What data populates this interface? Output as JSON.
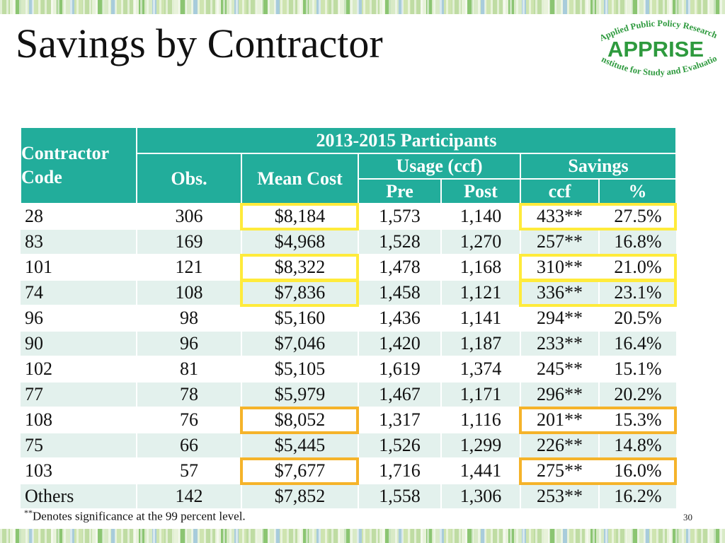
{
  "slide": {
    "title": "Savings by Contractor",
    "slide_number": "30",
    "footnote_marker": "**",
    "footnote": "Denotes significance at the 99 percent level."
  },
  "logo": {
    "top_text": "Applied Public Policy Research",
    "name": "APPRISE",
    "bottom_text": "Institute for Study and Evaluation",
    "color": "#2e9a3e"
  },
  "table": {
    "header": {
      "contractor_code": "Contractor Code",
      "group": "2013-2015 Participants",
      "obs": "Obs.",
      "mean_cost": "Mean Cost",
      "usage": "Usage (ccf)",
      "savings": "Savings",
      "pre": "Pre",
      "post": "Post",
      "ccf": "ccf",
      "pct": "%"
    },
    "rows": [
      [
        "28",
        "306",
        "$8,184",
        "1,573",
        "1,140",
        "433**",
        "27.5%"
      ],
      [
        "83",
        "169",
        "$4,968",
        "1,528",
        "1,270",
        "257**",
        "16.8%"
      ],
      [
        "101",
        "121",
        "$8,322",
        "1,478",
        "1,168",
        "310**",
        "21.0%"
      ],
      [
        "74",
        "108",
        "$7,836",
        "1,458",
        "1,121",
        "336**",
        "23.1%"
      ],
      [
        "96",
        "98",
        "$5,160",
        "1,436",
        "1,141",
        "294**",
        "20.5%"
      ],
      [
        "90",
        "96",
        "$7,046",
        "1,420",
        "1,187",
        "233**",
        "16.4%"
      ],
      [
        "102",
        "81",
        "$5,105",
        "1,619",
        "1,374",
        "245**",
        "15.1%"
      ],
      [
        "77",
        "78",
        "$5,979",
        "1,467",
        "1,171",
        "296**",
        "20.2%"
      ],
      [
        "108",
        "76",
        "$8,052",
        "1,317",
        "1,116",
        "201**",
        "15.3%"
      ],
      [
        "75",
        "66",
        "$5,445",
        "1,526",
        "1,299",
        "226**",
        "14.8%"
      ],
      [
        "103",
        "57",
        "$7,677",
        "1,716",
        "1,441",
        "275**",
        "16.0%"
      ],
      [
        "Others",
        "142",
        "$7,852",
        "1,558",
        "1,306",
        "253**",
        "16.2%"
      ]
    ],
    "highlights": {
      "yellow_rows": [
        0,
        2,
        3
      ],
      "orange_rows": [
        8,
        10
      ],
      "yellow_color": "#ffeb3b",
      "orange_color": "#f5b32a"
    },
    "header_color": "#22ad9b",
    "stripe_color": "#e3f1ed"
  }
}
